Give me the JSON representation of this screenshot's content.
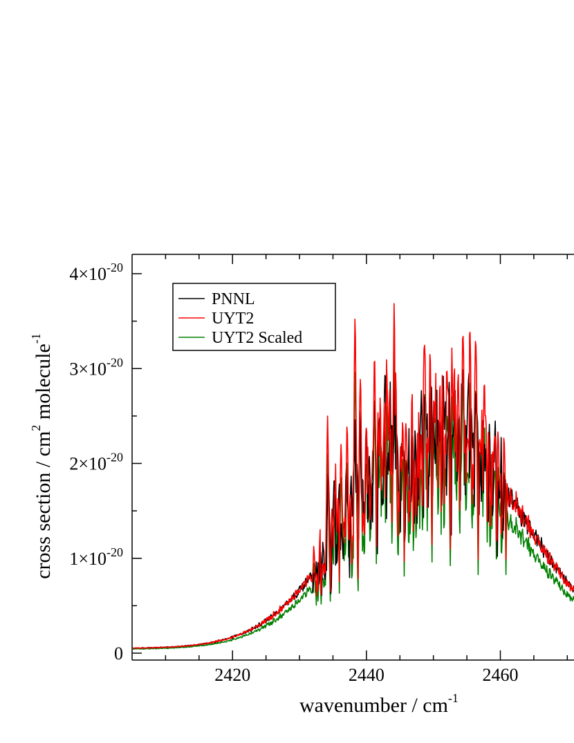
{
  "chart_data": {
    "type": "line",
    "xlabel_main": "wavenumber / cm",
    "xlabel_sup": "-1",
    "ylabel_parts": [
      "cross section / cm",
      "2",
      " molecule",
      "-1"
    ],
    "xlim": [
      2405,
      2471
    ],
    "ylim": [
      0,
      4.2e-20
    ],
    "x_ticks": [
      2420,
      2440,
      2460
    ],
    "x_tick_labels": [
      "2420",
      "2440",
      "2460"
    ],
    "y_ticks": [
      0,
      1e-20,
      2e-20,
      3e-20,
      4e-20
    ],
    "y_tick_labels": [
      {
        "base": "0",
        "exp": ""
      },
      {
        "base": "1×10",
        "exp": "-20"
      },
      {
        "base": "2×10",
        "exp": "-20"
      },
      {
        "base": "3×10",
        "exp": "-20"
      },
      {
        "base": "4×10",
        "exp": "-20"
      }
    ],
    "legend_position": "top-left",
    "grid": false,
    "series": [
      {
        "name": "PNNL",
        "color": "#000000",
        "scale": 1.0,
        "peaks": [
          [
            2434.3,
            1.9e-20
          ],
          [
            2435.2,
            1.85e-20
          ],
          [
            2436.0,
            1.8e-20
          ],
          [
            2437.0,
            1.95e-20
          ],
          [
            2438.2,
            2.75e-20
          ],
          [
            2439.0,
            2.55e-20
          ],
          [
            2440.0,
            2.3e-20
          ],
          [
            2441.2,
            2.7e-20
          ],
          [
            2442.0,
            2.5e-20
          ],
          [
            2442.8,
            2.95e-20
          ],
          [
            2443.6,
            2.9e-20
          ],
          [
            2444.3,
            3e-20
          ],
          [
            2445.3,
            2.6e-20
          ],
          [
            2446.0,
            1.8e-20
          ],
          [
            2448.7,
            2.7e-20
          ],
          [
            2450.3,
            2e-20
          ],
          [
            2451.8,
            2.65e-20
          ],
          [
            2453.3,
            2.8e-20
          ],
          [
            2454.4,
            3.05e-20
          ],
          [
            2455.3,
            3e-20
          ],
          [
            2456.3,
            2.75e-20
          ],
          [
            2457.5,
            2.5e-20
          ],
          [
            2459.0,
            2.05e-20
          ],
          [
            2460.3,
            1.3e-20
          ]
        ]
      },
      {
        "name": "UYT2",
        "color": "#ff0000",
        "scale": 1.0,
        "peaks": [
          [
            2434.2,
            2.5e-20
          ],
          [
            2435.3,
            2.3e-20
          ],
          [
            2436.2,
            2.2e-20
          ],
          [
            2437.1,
            2.4e-20
          ],
          [
            2438.3,
            3.55e-20
          ],
          [
            2439.1,
            2.9e-20
          ],
          [
            2440.1,
            2.6e-20
          ],
          [
            2441.2,
            3.15e-20
          ],
          [
            2442.1,
            2.85e-20
          ],
          [
            2443.0,
            3.1e-20
          ],
          [
            2443.5,
            2.9e-20
          ],
          [
            2444.2,
            4e-20
          ],
          [
            2445.4,
            2.8e-20
          ],
          [
            2446.0,
            2e-20
          ],
          [
            2448.7,
            3.25e-20
          ],
          [
            2450.5,
            2.25e-20
          ],
          [
            2452.0,
            3e-20
          ],
          [
            2453.2,
            3.3e-20
          ],
          [
            2454.4,
            3.4e-20
          ],
          [
            2455.4,
            3.45e-20
          ],
          [
            2456.3,
            3.3e-20
          ],
          [
            2457.6,
            2.9e-20
          ],
          [
            2459.2,
            2.3e-20
          ],
          [
            2460.3,
            1.45e-20
          ]
        ]
      },
      {
        "name": "UYT2 Scaled",
        "color": "#008000",
        "scale": 0.84,
        "peaks": []
      }
    ]
  }
}
